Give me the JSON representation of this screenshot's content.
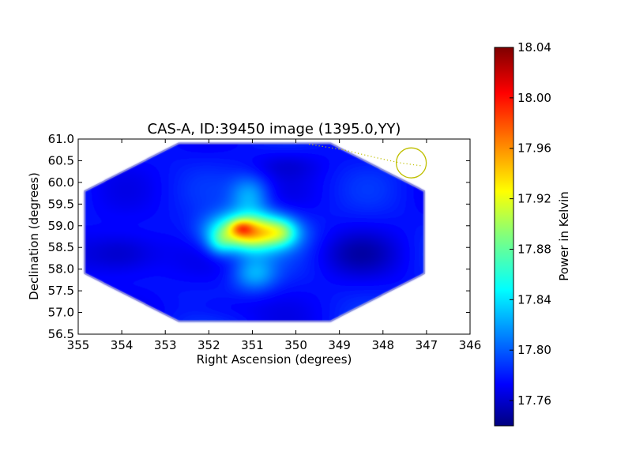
{
  "chart_data": {
    "type": "heatmap",
    "title": "CAS-A, ID:39450 image (1395.0,YY)",
    "xlabel": "Right Ascension (degrees)",
    "ylabel": "Declination (degrees)",
    "xlim": [
      355,
      346
    ],
    "ylim": [
      56.5,
      61.0
    ],
    "x_ticks": [
      "355",
      "354",
      "353",
      "352",
      "351",
      "350",
      "349",
      "348",
      "347",
      "346"
    ],
    "y_ticks": [
      "56.5",
      "57.0",
      "57.5",
      "58.0",
      "58.5",
      "59.0",
      "59.5",
      "60.0",
      "60.5",
      "61.0"
    ],
    "colorbar": {
      "label": "Power in Kelvin",
      "range": [
        17.74,
        18.04
      ],
      "ticks": [
        "17.76",
        "17.80",
        "17.84",
        "17.88",
        "17.92",
        "17.96",
        "18.00",
        "18.04"
      ],
      "colormap": "jet"
    },
    "field_outline_radec": [
      [
        352.7,
        60.9
      ],
      [
        349.2,
        60.9
      ],
      [
        347.05,
        59.8
      ],
      [
        347.05,
        57.9
      ],
      [
        349.2,
        56.8
      ],
      [
        352.7,
        56.8
      ],
      [
        354.85,
        57.9
      ],
      [
        354.85,
        59.8
      ]
    ],
    "peak": {
      "ra": 351.1,
      "dec": 58.85,
      "value": 18.04
    },
    "beam_marker": {
      "ra": 347.35,
      "dec": 60.45,
      "color": "#bfbf00"
    },
    "dotted_track_radec": [
      [
        349.7,
        60.88
      ],
      [
        348.9,
        60.75
      ],
      [
        348.2,
        60.58
      ],
      [
        347.6,
        60.45
      ],
      [
        347.1,
        60.38
      ]
    ]
  }
}
